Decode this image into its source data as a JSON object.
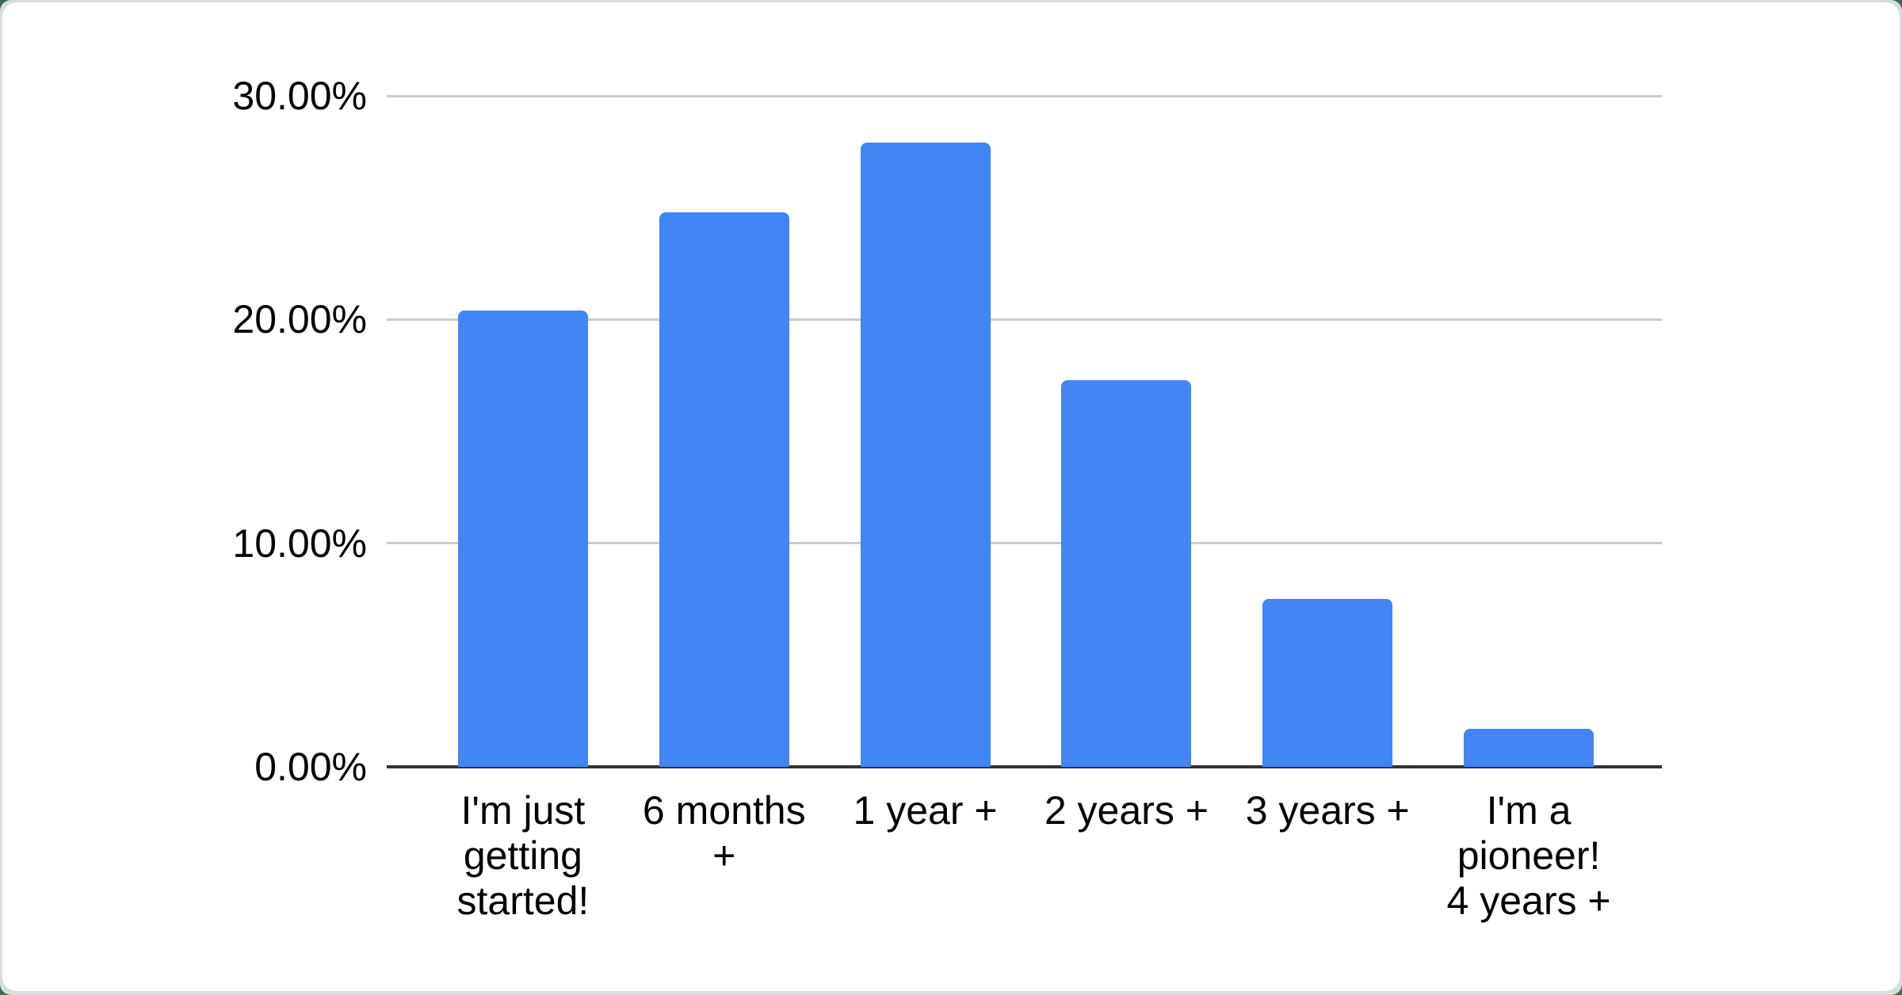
{
  "chart_data": {
    "type": "bar",
    "title": "",
    "xlabel": "",
    "ylabel": "",
    "categories": [
      "I'm just getting started!",
      "6 months +",
      "1 year +",
      "2 years +",
      "3 years +",
      "I'm a pioneer! 4 years +"
    ],
    "category_lines": [
      [
        "I'm just",
        "getting",
        "started!"
      ],
      [
        "6 months",
        "+"
      ],
      [
        "1 year +"
      ],
      [
        "2 years +"
      ],
      [
        "3 years +"
      ],
      [
        "I'm a",
        "pioneer!",
        "4 years +"
      ]
    ],
    "values": [
      20.4,
      24.8,
      27.9,
      17.3,
      7.5,
      1.7
    ],
    "y_ticks": [
      "30.00%",
      "20.00%",
      "10.00%",
      "0.00%"
    ],
    "ylim": [
      0,
      30
    ],
    "grid": true,
    "legend_position": "none",
    "bar_color": "#4285f4",
    "grid_color": "#cccccc",
    "axis_line_color": "#333333",
    "text_color": "#000000",
    "card_background": "#ffffff",
    "frame_color": "#d9dde0"
  }
}
